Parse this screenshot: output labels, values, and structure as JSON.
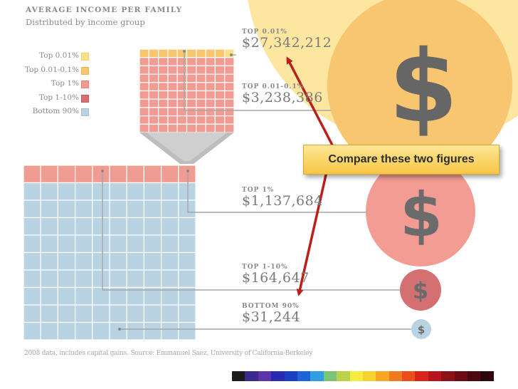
{
  "colors": {
    "top_001": "#fbe08a",
    "top_001_01": "#f7c66f",
    "top_1": "#f19c93",
    "top_1_10": "#d46f72",
    "bottom_90": "#b9d3e3",
    "gray_line": "#a6a6a6",
    "arrow": "#bb1f1a"
  },
  "chart_data": {
    "type": "waffle",
    "title": "AVERAGE INCOME PER FAMILY",
    "subtitle": "Distributed by income group",
    "legend": [
      {
        "label": "Top 0.01%",
        "color": "#fbe08a"
      },
      {
        "label": "Top 0.01-0.1%",
        "color": "#f7c66f"
      },
      {
        "label": "Top 1%",
        "color": "#f19c93"
      },
      {
        "label": "Top 1-10%",
        "color": "#d46f72"
      },
      {
        "label": "Bottom 90%",
        "color": "#b9d3e3"
      }
    ],
    "groups": [
      {
        "label": "TOP 0.01%",
        "value_text": "$27,342,212",
        "value": 27342212
      },
      {
        "label": "TOP 0.01-0.1%",
        "value_text": "$3,238,386",
        "value": 3238386
      },
      {
        "label": "TOP 1%",
        "value_text": "$1,137,684",
        "value": 1137684
      },
      {
        "label": "TOP 1-10%",
        "value_text": "$164,647",
        "value": 164647
      },
      {
        "label": "BOTTOM 90%",
        "value_text": "$31,244",
        "value": 31244
      }
    ],
    "grids": {
      "small": {
        "rows": 10,
        "cols": 10,
        "cells_top_0.01": 1,
        "cells_top_0.01_0.1": 9,
        "cells_rest_top_1": 90
      },
      "large": {
        "rows": 10,
        "cols": 10,
        "cells_top_1": 10,
        "cells_bottom_90": 90
      }
    },
    "source": "2008 data, includes capital gains. Source: Emmanuel Saez, University of California-Berkeley"
  },
  "callout": {
    "text": "Compare these two figures"
  },
  "icons": {
    "dollar": "$"
  },
  "color_bar": [
    "#1b1b1b",
    "#3a2d8a",
    "#5c35a8",
    "#2a2ab0",
    "#1b3fc2",
    "#1f63d8",
    "#2ea0dd",
    "#7cc47a",
    "#b8d24a",
    "#f4ec3e",
    "#f7d12e",
    "#f5a623",
    "#f07a1e",
    "#ec4d1d",
    "#d9261c",
    "#b5141c",
    "#8c1018",
    "#6b0d12",
    "#4d0a0e",
    "#2c0608"
  ]
}
